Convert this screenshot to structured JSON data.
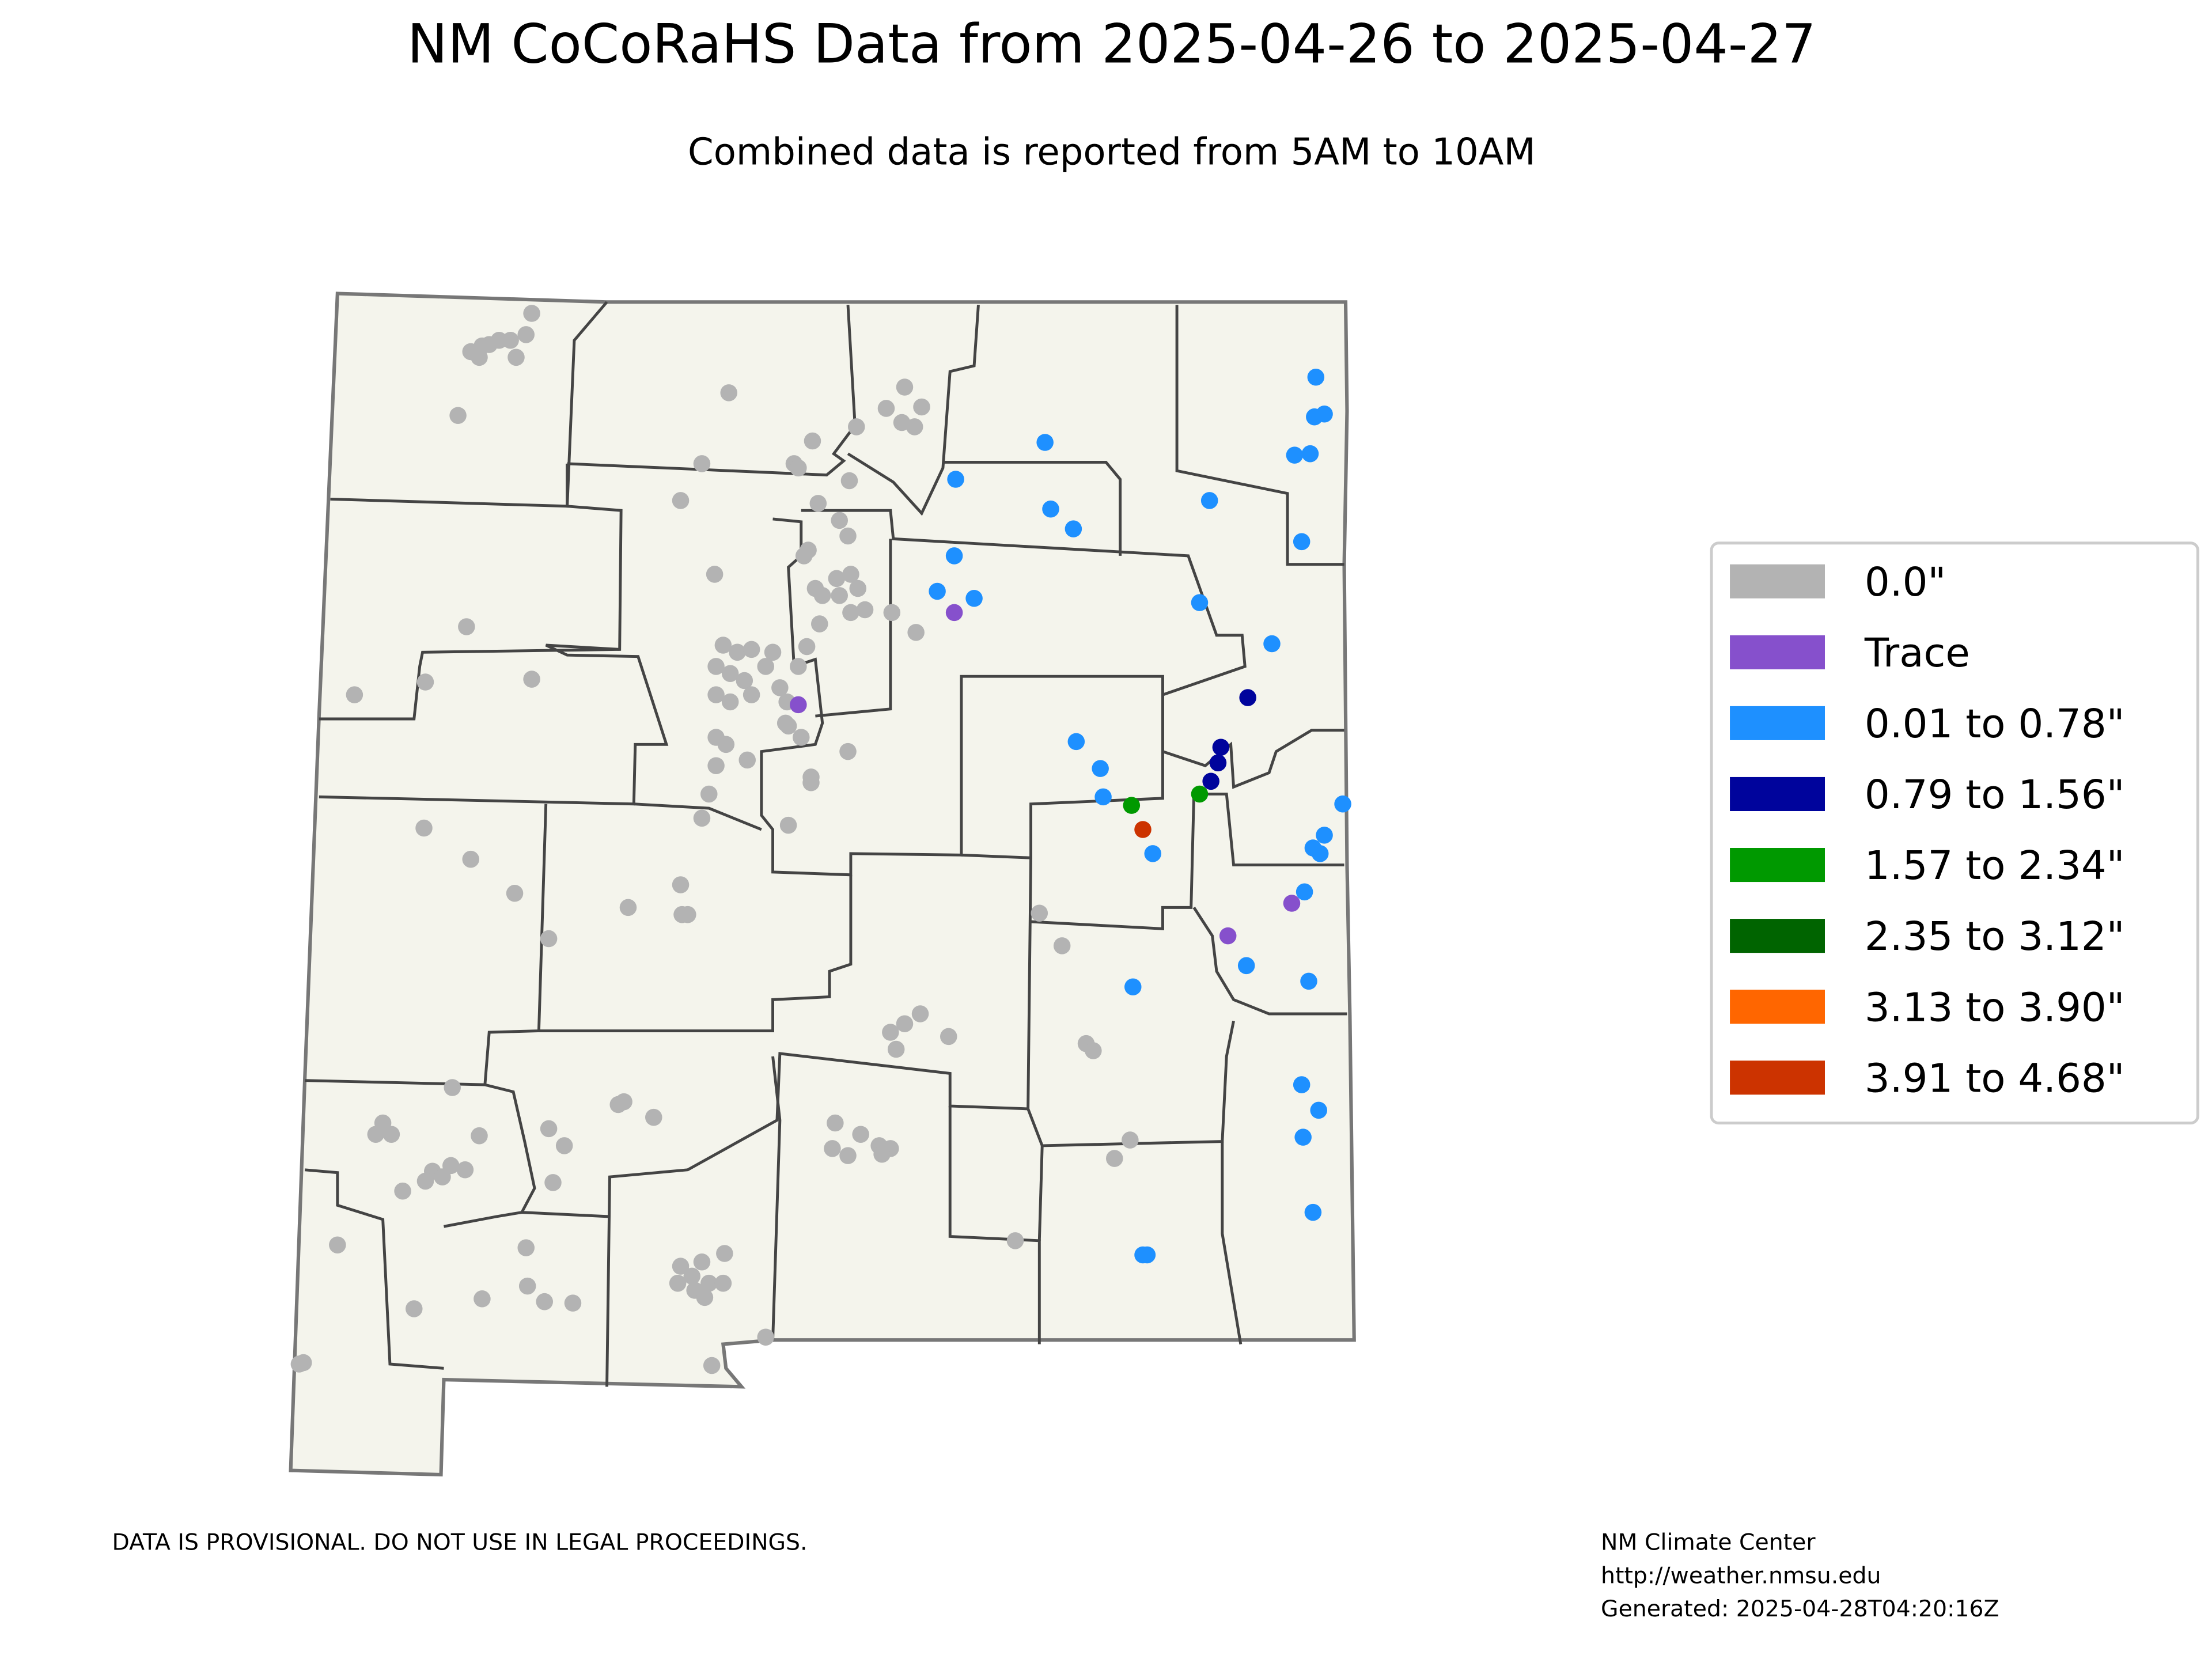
{
  "title": "NM CoCoRaHS Data from 2025-04-26 to 2025-04-27",
  "subtitle": "Combined data is reported from 5AM to 10AM",
  "legend": [
    {
      "label": "0.0\"",
      "color": "#b3b3b3"
    },
    {
      "label": "Trace",
      "color": "#8650cc"
    },
    {
      "label": "0.01 to 0.78\"",
      "color": "#1e90ff"
    },
    {
      "label": "0.79 to 1.56\"",
      "color": "#00049c"
    },
    {
      "label": "1.57 to 2.34\"",
      "color": "#009900"
    },
    {
      "label": "2.35 to 3.12\"",
      "color": "#006400"
    },
    {
      "label": "3.13 to 3.90\"",
      "color": "#ff6600"
    },
    {
      "label": "3.91 to 4.68\"",
      "color": "#cc3300"
    }
  ],
  "disclaimer": "DATA IS PROVISIONAL. DO NOT USE IN LEGAL PROCEEDINGS.",
  "credits": [
    "NM Climate Center",
    "http://weather.nmsu.edu",
    "Generated: 2025-04-28T04:20:16Z"
  ]
}
